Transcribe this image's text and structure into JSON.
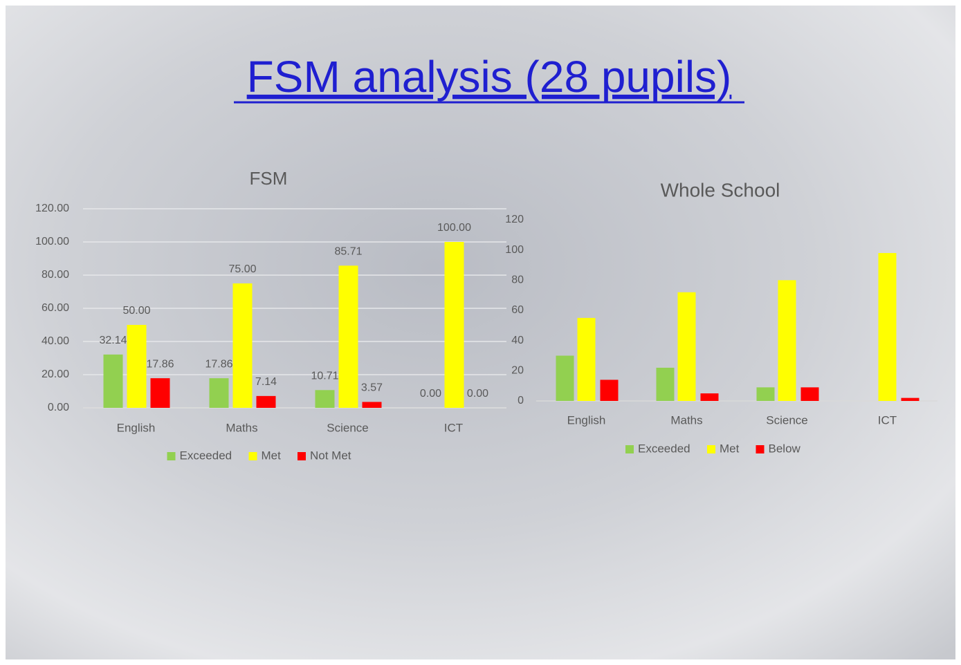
{
  "title": "FSM analysis (28 pupils)",
  "chart_data": [
    {
      "type": "bar",
      "title": "FSM",
      "categories": [
        "English",
        "Maths",
        "Science",
        "ICT"
      ],
      "series": [
        {
          "name": "Exceeded",
          "color": "#92d050",
          "values": [
            32.14,
            17.86,
            10.71,
            0
          ],
          "value_labels": [
            "32.14",
            "17.86",
            "10.71",
            "0.00"
          ]
        },
        {
          "name": "Met",
          "color": "#ffff00",
          "values": [
            50,
            75,
            85.71,
            100
          ],
          "value_labels": [
            "50.00",
            "75.00",
            "85.71",
            "100.00"
          ]
        },
        {
          "name": "Not Met",
          "color": "#ff0000",
          "values": [
            17.86,
            7.14,
            3.57,
            0
          ],
          "value_labels": [
            "17.86",
            "7.14",
            "3.57",
            "0.00"
          ]
        }
      ],
      "ylim": [
        0,
        120
      ],
      "yticks": [
        {
          "value": 0,
          "label": "0.00"
        },
        {
          "value": 20,
          "label": "20.00"
        },
        {
          "value": 40,
          "label": "40.00"
        },
        {
          "value": 60,
          "label": "60.00"
        },
        {
          "value": 80,
          "label": "80.00"
        },
        {
          "value": 100,
          "label": "100.00"
        },
        {
          "value": 120,
          "label": "120.00"
        }
      ],
      "grid": true,
      "legend": "bottom"
    },
    {
      "type": "bar",
      "title": "Whole School",
      "categories": [
        "English",
        "Maths",
        "Science",
        "ICT"
      ],
      "series": [
        {
          "name": "Exceeded",
          "color": "#92d050",
          "values": [
            30,
            22,
            9,
            0
          ]
        },
        {
          "name": "Met",
          "color": "#ffff00",
          "values": [
            55,
            72,
            80,
            98
          ]
        },
        {
          "name": "Below",
          "color": "#ff0000",
          "values": [
            14,
            5,
            9,
            2
          ]
        }
      ],
      "ylim": [
        0,
        120
      ],
      "yticks": [
        0,
        20,
        40,
        60,
        80,
        100,
        120
      ],
      "grid": false,
      "legend": "bottom"
    }
  ]
}
